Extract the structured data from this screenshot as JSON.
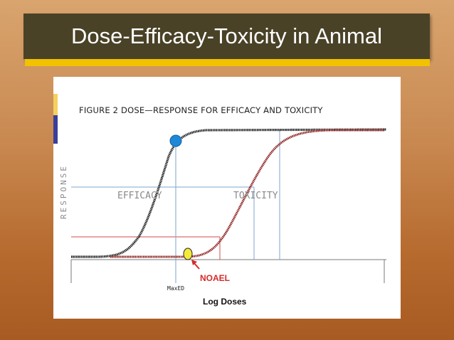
{
  "slide": {
    "title": "Dose-Efficacy-Toxicity in Animal"
  },
  "figure": {
    "title": "FIGURE 2   DOSE—RESPONSE FOR EFFICACY AND TOXICITY",
    "y_axis_label": "RESPONSE",
    "efficacy_label": "EFFICACY",
    "toxicity_label": "TOXICITY",
    "maxed_label": "MaxED",
    "noael_label": "NOAEL",
    "x_axis_label": "Log  Doses"
  },
  "colors": {
    "efficacy_curve": "#1a1a1a",
    "toxicity_curve": "#8b1a1a",
    "maxed_marker": "#1e88d6",
    "noael_marker": "#f5ea3a",
    "guide_blue": "#7ea6cf",
    "guide_red": "#d24b4b",
    "title_bar": "#4a4227",
    "title_accent": "#f2c200"
  }
}
